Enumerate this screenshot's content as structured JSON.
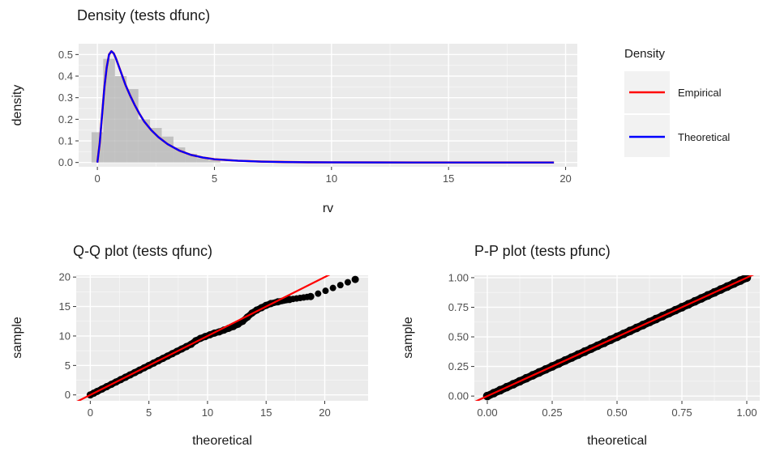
{
  "chart_data": [
    {
      "type": "histogram+density",
      "title": "Density (tests dfunc)",
      "xlabel": "rv",
      "ylabel": "density",
      "xlim": [
        -0.8,
        20.5
      ],
      "ylim": [
        -0.02,
        0.55
      ],
      "xticks": [
        0,
        5,
        10,
        15,
        20
      ],
      "xtick_labels": [
        "0",
        "5",
        "10",
        "15",
        "20"
      ],
      "yticks": [
        0.0,
        0.1,
        0.2,
        0.3,
        0.4,
        0.5
      ],
      "ytick_labels": [
        "0.0",
        "0.1",
        "0.2",
        "0.3",
        "0.4",
        "0.5"
      ],
      "grid": true,
      "histogram": {
        "bin_edges": [
          -0.25,
          0.25,
          0.75,
          1.25,
          1.75,
          2.25,
          2.75,
          3.25,
          3.75,
          4.25,
          4.75,
          5.25
        ],
        "densities": [
          0.14,
          0.48,
          0.4,
          0.34,
          0.2,
          0.16,
          0.12,
          0.07,
          0.04,
          0.02,
          0.01
        ]
      },
      "series": [
        {
          "name": "Empirical",
          "color": "#ff0000",
          "x": [
            0,
            0.1,
            0.2,
            0.3,
            0.4,
            0.5,
            0.6,
            0.7,
            0.8,
            0.9,
            1.0,
            1.2,
            1.4,
            1.6,
            1.8,
            2.0,
            2.3,
            2.6,
            3.0,
            3.5,
            4.0,
            4.5,
            5.0,
            6.0,
            7.0,
            8.0,
            9.0,
            10.0,
            12.0,
            14.0,
            16.0,
            18.0,
            19.5
          ],
          "y": [
            0,
            0.09,
            0.22,
            0.35,
            0.44,
            0.5,
            0.515,
            0.505,
            0.48,
            0.45,
            0.42,
            0.36,
            0.31,
            0.265,
            0.225,
            0.19,
            0.15,
            0.118,
            0.085,
            0.055,
            0.035,
            0.023,
            0.015,
            0.008,
            0.004,
            0.002,
            0.001,
            0.0005,
            0.0001,
            0,
            0,
            0,
            0
          ]
        },
        {
          "name": "Theoretical",
          "color": "#0000ff",
          "x": [
            0,
            0.1,
            0.2,
            0.3,
            0.4,
            0.5,
            0.6,
            0.7,
            0.8,
            0.9,
            1.0,
            1.2,
            1.4,
            1.6,
            1.8,
            2.0,
            2.3,
            2.6,
            3.0,
            3.5,
            4.0,
            4.5,
            5.0,
            6.0,
            7.0,
            8.0,
            9.0,
            10.0,
            12.0,
            14.0,
            16.0,
            18.0,
            19.5
          ],
          "y": [
            0,
            0.09,
            0.22,
            0.35,
            0.44,
            0.5,
            0.515,
            0.505,
            0.48,
            0.45,
            0.42,
            0.36,
            0.31,
            0.265,
            0.225,
            0.19,
            0.15,
            0.118,
            0.085,
            0.055,
            0.035,
            0.023,
            0.015,
            0.008,
            0.004,
            0.002,
            0.001,
            0.0005,
            0.0001,
            0,
            0,
            0,
            0
          ]
        }
      ],
      "legend": {
        "title": "Density",
        "placement": "right",
        "items": [
          {
            "label": "Empirical",
            "color": "#ff0000"
          },
          {
            "label": "Theoretical",
            "color": "#0000ff"
          }
        ]
      }
    },
    {
      "type": "scatter",
      "title": "Q-Q plot (tests qfunc)",
      "xlabel": "theoretical",
      "ylabel": "sample",
      "xlim": [
        -1.2,
        23.7
      ],
      "ylim": [
        -1.0,
        20.3
      ],
      "xticks": [
        0,
        5,
        10,
        15,
        20
      ],
      "xtick_labels": [
        "0",
        "5",
        "10",
        "15",
        "20"
      ],
      "yticks": [
        0,
        5,
        10,
        15,
        20
      ],
      "ytick_labels": [
        "0",
        "5",
        "10",
        "15",
        "20"
      ],
      "grid": true,
      "reference_line": {
        "slope": 1,
        "intercept": 0,
        "color": "#ff0000"
      },
      "points_color": "#000000",
      "points": {
        "x": [
          0,
          0.3,
          0.6,
          1.0,
          1.4,
          1.8,
          2.2,
          2.6,
          3.0,
          3.4,
          3.8,
          4.2,
          4.6,
          5.0,
          5.4,
          5.8,
          6.2,
          6.6,
          7.0,
          7.4,
          7.8,
          8.2,
          8.6,
          9.0,
          9.4,
          9.8,
          10.2,
          10.6,
          11.0,
          11.4,
          11.8,
          12.2,
          12.6,
          13.0,
          13.4,
          13.8,
          14.2,
          14.6,
          15.0,
          15.4,
          16.0,
          17.0,
          18.8,
          22.6
        ],
        "y": [
          0,
          0.3,
          0.6,
          1.0,
          1.4,
          1.8,
          2.2,
          2.6,
          3.0,
          3.4,
          3.8,
          4.2,
          4.6,
          5.0,
          5.4,
          5.8,
          6.2,
          6.6,
          7.0,
          7.4,
          7.8,
          8.2,
          8.6,
          9.2,
          9.6,
          9.9,
          10.2,
          10.5,
          10.7,
          11.0,
          11.3,
          11.6,
          12.0,
          12.5,
          13.2,
          13.9,
          14.4,
          14.8,
          15.2,
          15.5,
          15.8,
          16.2,
          16.7,
          19.6
        ]
      }
    },
    {
      "type": "scatter",
      "title": "P-P plot (tests pfunc)",
      "xlabel": "theoretical",
      "ylabel": "sample",
      "xlim": [
        -0.05,
        1.05
      ],
      "ylim": [
        -0.04,
        1.02
      ],
      "xticks": [
        0,
        0.25,
        0.5,
        0.75,
        1.0
      ],
      "xtick_labels": [
        "0.00",
        "0.25",
        "0.50",
        "0.75",
        "1.00"
      ],
      "yticks": [
        0,
        0.25,
        0.5,
        0.75,
        1.0
      ],
      "ytick_labels": [
        "0.00",
        "0.25",
        "0.50",
        "0.75",
        "1.00"
      ],
      "grid": true,
      "reference_line": {
        "slope": 1,
        "intercept": 0,
        "color": "#ff0000"
      },
      "points_color": "#000000",
      "points": {
        "x": [
          0,
          0.025,
          0.05,
          0.075,
          0.1,
          0.125,
          0.15,
          0.175,
          0.2,
          0.225,
          0.25,
          0.275,
          0.3,
          0.325,
          0.35,
          0.375,
          0.4,
          0.425,
          0.45,
          0.475,
          0.5,
          0.525,
          0.55,
          0.575,
          0.6,
          0.625,
          0.65,
          0.675,
          0.7,
          0.725,
          0.75,
          0.775,
          0.8,
          0.825,
          0.85,
          0.875,
          0.9,
          0.925,
          0.95,
          0.975,
          1.0
        ],
        "y": [
          0,
          0.025,
          0.05,
          0.075,
          0.1,
          0.125,
          0.15,
          0.175,
          0.2,
          0.225,
          0.25,
          0.275,
          0.3,
          0.325,
          0.35,
          0.375,
          0.4,
          0.425,
          0.45,
          0.475,
          0.5,
          0.525,
          0.55,
          0.575,
          0.6,
          0.625,
          0.65,
          0.675,
          0.7,
          0.725,
          0.75,
          0.775,
          0.8,
          0.825,
          0.85,
          0.875,
          0.9,
          0.925,
          0.95,
          0.975,
          1.0
        ]
      }
    }
  ]
}
